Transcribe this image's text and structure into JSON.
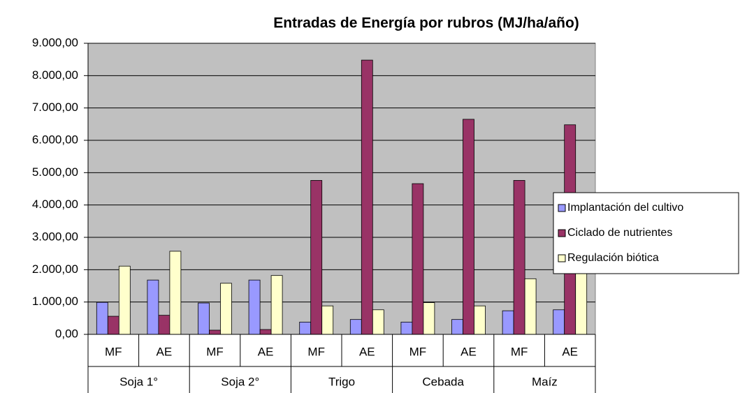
{
  "chart_data": {
    "type": "bar",
    "title": "Entradas de Energía por rubros (MJ/ha/año)",
    "categories": [
      "MF",
      "AE",
      "MF",
      "AE",
      "MF",
      "AE",
      "MF",
      "AE",
      "MF",
      "AE"
    ],
    "groups": [
      "Soja 1°",
      "Soja 2°",
      "Trigo",
      "Cebada",
      "Maíz"
    ],
    "series": [
      {
        "name": "Implantación del cultivo",
        "color": "#9999ff",
        "values": [
          990,
          1680,
          970,
          1680,
          380,
          460,
          380,
          460,
          730,
          760
        ]
      },
      {
        "name": "Ciclado de nutrientes",
        "color": "#993366",
        "values": [
          560,
          590,
          130,
          150,
          4760,
          8480,
          4660,
          6650,
          4760,
          6480
        ]
      },
      {
        "name": "Regulación biótica",
        "color": "#ffffcc",
        "values": [
          2110,
          2570,
          1580,
          1820,
          880,
          760,
          980,
          880,
          1720,
          2100
        ]
      }
    ],
    "ylim": [
      0,
      9000
    ],
    "yticks": [
      {
        "value": 0,
        "label": "0,00"
      },
      {
        "value": 1000,
        "label": "1.000,00"
      },
      {
        "value": 2000,
        "label": "2.000,00"
      },
      {
        "value": 3000,
        "label": "3.000,00"
      },
      {
        "value": 4000,
        "label": "4.000,00"
      },
      {
        "value": 5000,
        "label": "5.000,00"
      },
      {
        "value": 6000,
        "label": "6.000,00"
      },
      {
        "value": 7000,
        "label": "7.000,00"
      },
      {
        "value": 8000,
        "label": "8.000,00"
      },
      {
        "value": 9000,
        "label": "9.000,00"
      }
    ],
    "grid": true,
    "background": "#c0c0c0",
    "legend": "right"
  }
}
